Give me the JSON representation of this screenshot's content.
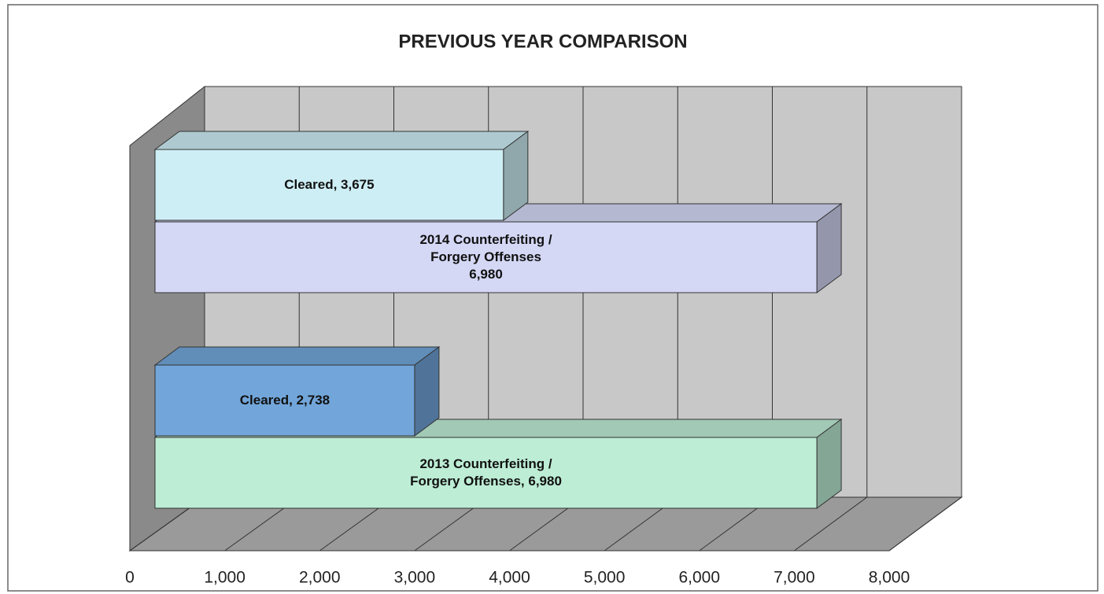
{
  "chart_data": {
    "type": "bar3d",
    "title": "PREVIOUS YEAR COMPARISON",
    "values": [
      3675,
      6980,
      2738,
      6980
    ],
    "value_labels": [
      "Cleared, 3,675",
      "2014 Counterfeiting /\nForgery Offenses\n6,980",
      "Cleared, 2,738",
      "2013 Counterfeiting /\nForgery Offenses, 6,980"
    ],
    "colors": [
      "#cdeef5",
      "#d4d8f5",
      "#72a6da",
      "#bdedd5"
    ],
    "xlim": [
      0,
      8000
    ],
    "xticks": [
      0,
      {
        "value": 1000,
        "label": "1,000"
      },
      {
        "value": 2000,
        "label": "2,000"
      },
      {
        "value": 3000,
        "label": "3,000"
      },
      {
        "value": 4000,
        "label": "4,000"
      },
      {
        "value": 5000,
        "label": "5,000"
      },
      {
        "value": 6000,
        "label": "6,000"
      },
      {
        "value": 7000,
        "label": "7,000"
      },
      {
        "value": 8000,
        "label": "8,000"
      }
    ],
    "grid": true
  }
}
